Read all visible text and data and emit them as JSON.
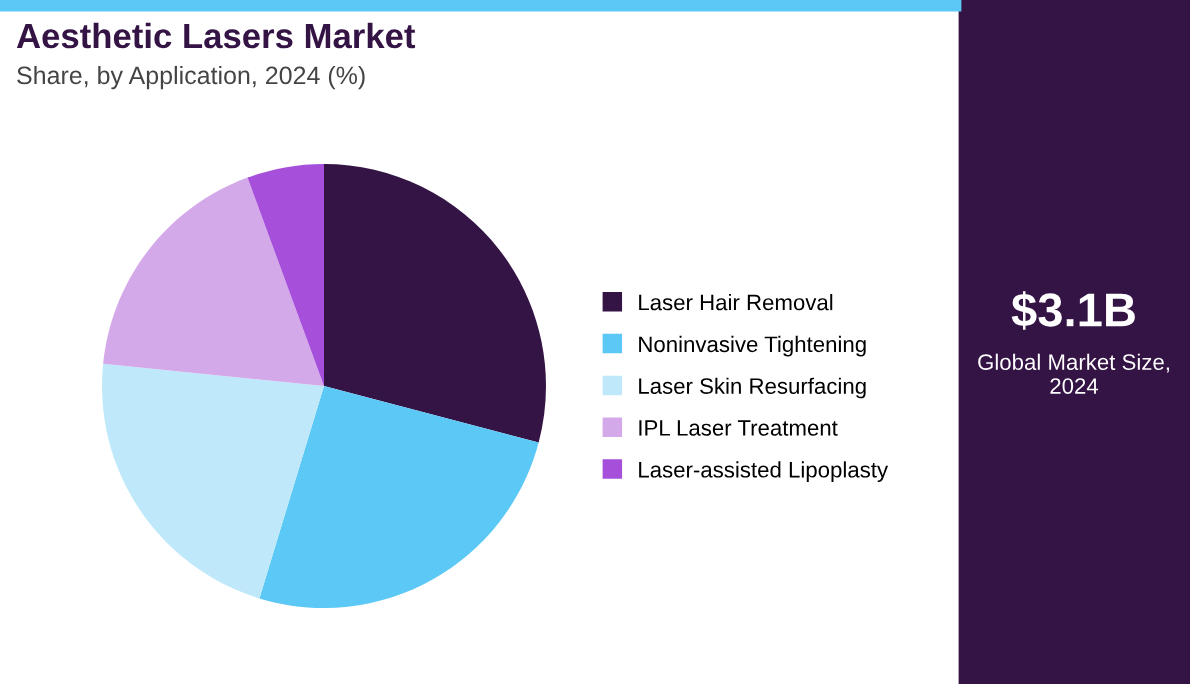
{
  "chart_data": {
    "type": "pie",
    "title": "Aesthetic Lasers Market",
    "subtitle": "Share, by Application, 2024 (%)",
    "categories": [
      "Laser Hair Removal",
      "Noninvasive Tightening",
      "Laser Skin Resurfacing",
      "IPL Laser Treatment",
      "Laser-assisted Lipoplasty"
    ],
    "values": [
      29.1,
      25.6,
      21.9,
      17.8,
      5.6
    ],
    "colors": [
      "#341445",
      "#5bc8f5",
      "#bfe9fa",
      "#d4a9ea",
      "#a64fdb"
    ],
    "legend": "right",
    "annotations": [
      "$3.1B",
      "Global Market Size,\n2024"
    ]
  }
}
